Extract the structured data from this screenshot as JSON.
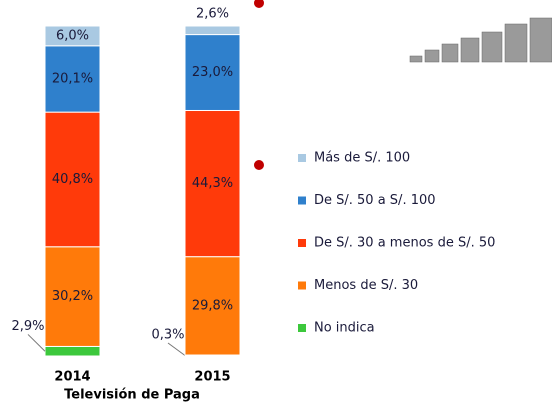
{
  "chart_data": {
    "type": "bar",
    "stacked": true,
    "x_label": "Televisión de Paga",
    "categories": [
      "2014",
      "2015"
    ],
    "series": [
      {
        "name": "No indica",
        "color": "#3cc83c",
        "values": [
          2.9,
          0.3
        ],
        "value_labels": [
          "2,9%",
          "0,3%"
        ]
      },
      {
        "name": "Menos de S/. 30",
        "color": "#ff7a0a",
        "values": [
          30.2,
          29.8
        ],
        "value_labels": [
          "30,2%",
          "29,8%"
        ]
      },
      {
        "name": "De S/. 30 a menos de S/. 50",
        "color": "#ff3a0a",
        "values": [
          40.8,
          44.3
        ],
        "value_labels": [
          "40,8%",
          "44,3%"
        ]
      },
      {
        "name": "De S/. 50 a S/. 100",
        "color": "#2f80cc",
        "values": [
          20.1,
          23.0
        ],
        "value_labels": [
          "20,1%",
          "23,0%"
        ]
      },
      {
        "name": "Más de S/. 100",
        "color": "#a9c9e2",
        "values": [
          6.0,
          2.6
        ],
        "value_labels": [
          "6,0%",
          "2,6%"
        ]
      }
    ]
  }
}
